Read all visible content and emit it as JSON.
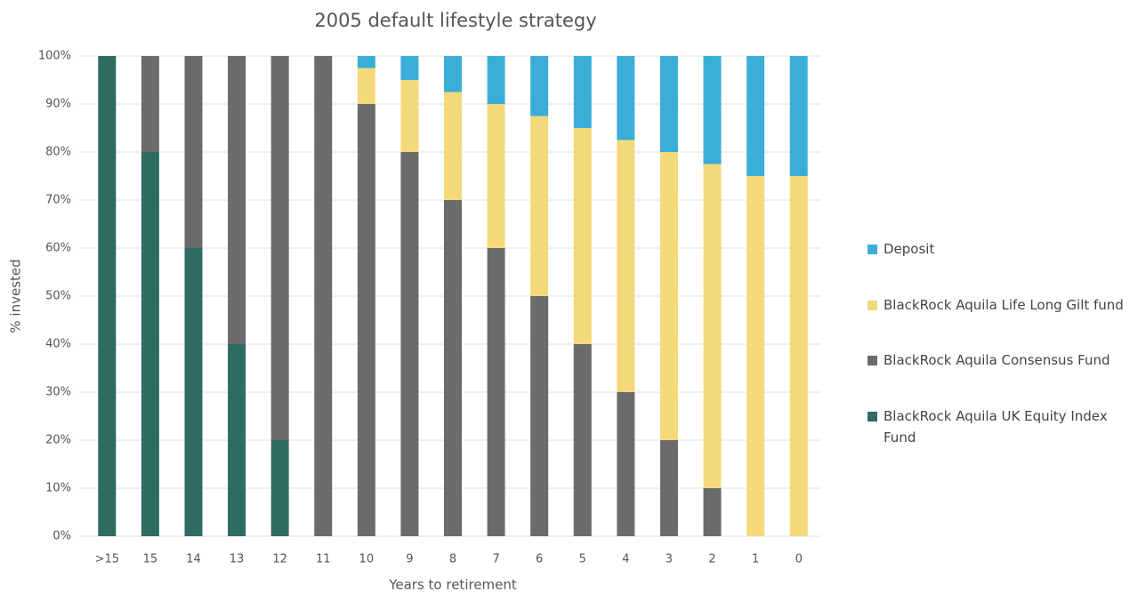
{
  "chart_data": {
    "type": "stacked_bar",
    "title": "2005 default lifestyle strategy",
    "x_label": "Years to retirement",
    "y_label": "% invested",
    "categories": [
      ">15",
      "15",
      "14",
      "13",
      "12",
      "11",
      "10",
      "9",
      "8",
      "7",
      "6",
      "5",
      "4",
      "3",
      "2",
      "1",
      "0"
    ],
    "series": [
      {
        "name": "BlackRock Aquila UK Equity Index Fund",
        "color": "#2e6b63",
        "values": [
          100,
          80,
          60,
          40,
          20,
          0,
          0,
          0,
          0,
          0,
          0,
          0,
          0,
          0,
          0,
          0,
          0
        ]
      },
      {
        "name": "BlackRock Aquila Consensus Fund",
        "color": "#6b6b6b",
        "values": [
          0,
          20,
          40,
          60,
          80,
          100,
          90,
          80,
          70,
          60,
          50,
          40,
          30,
          20,
          10,
          0,
          0
        ]
      },
      {
        "name": "BlackRock Aquila Life Long Gilt fund",
        "color": "#f4d97a",
        "values": [
          0,
          0,
          0,
          0,
          0,
          0,
          7.5,
          15,
          22.5,
          30,
          37.5,
          45,
          52.5,
          60,
          67.5,
          75,
          75
        ]
      },
      {
        "name": "Deposit",
        "color": "#3aaed8",
        "values": [
          0,
          0,
          0,
          0,
          0,
          0,
          2.5,
          5,
          7.5,
          10,
          12.5,
          15,
          17.5,
          20,
          22.5,
          25,
          25
        ]
      }
    ],
    "ylim": [
      0,
      100
    ],
    "yticks": [
      {
        "value": 0,
        "label": "0%"
      },
      {
        "value": 10,
        "label": "10%"
      },
      {
        "value": 20,
        "label": "20%"
      },
      {
        "value": 30,
        "label": "30%"
      },
      {
        "value": 40,
        "label": "40%"
      },
      {
        "value": 50,
        "label": "50%"
      },
      {
        "value": 60,
        "label": "60%"
      },
      {
        "value": 70,
        "label": "70%"
      },
      {
        "value": 80,
        "label": "80%"
      },
      {
        "value": 90,
        "label": "90%"
      },
      {
        "value": 100,
        "label": "100%"
      }
    ],
    "grid": true,
    "legend": "right"
  }
}
